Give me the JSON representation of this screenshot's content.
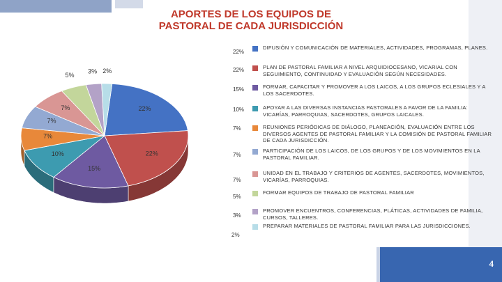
{
  "slide": {
    "title": "APORTES DE LOS EQUIPOS DE PASTORAL DE CADA JURISDICCIÓN",
    "page_number": "4"
  },
  "colors": {
    "title": "#c0392b",
    "accent": "#3866b0"
  },
  "chart_data": {
    "type": "pie",
    "title": "APORTES DE LOS EQUIPOS DE PASTORAL DE CADA JURISDICCIÓN",
    "slices": [
      {
        "label": "DIFUSIÓN Y COMUNICACIÓN DE MATERIALES, ACTIVIDADES, PROGRAMAS, PLANES.",
        "value": 22,
        "display": "22%",
        "color": "#4472c4"
      },
      {
        "label": "PLAN DE PASTORAL FAMILIAR A NIVEL ARQUIDIOCESANO, VICARIAL CON SEGUIMIENTO, CONTINUIDAD Y EVALUACIÓN SEGÚN NECESIDADES.",
        "value": 22,
        "display": "22%",
        "color": "#c0504d"
      },
      {
        "label": "FORMAR, CAPACITAR Y PROMOVER A LOS LAICOS, A LOS GRUPOS ECLESIALES Y A LOS SACERDOTES.",
        "value": 15,
        "display": "15%",
        "color": "#6e5aa1"
      },
      {
        "label": "APOYAR A LAS DIVERSAS INSTANCIAS PASTORALES A FAVOR DE LA FAMILIA: VICARÍAS, PARROQUIAS, SACERDOTES, GRUPOS LAICALES.",
        "value": 10,
        "display": "10%",
        "color": "#3d9bb0"
      },
      {
        "label": "REUNIONES PERIÓDICAS DE DIÁLOGO, PLANEACIÓN, EVALUACIÓN ENTRE LOS DIVERSOS AGENTES DE PASTORAL FAMILIAR Y LA COMISIÓN DE PASTORAL FAMILIAR DE CADA JURISDICCIÓN.",
        "value": 7,
        "display": "7%",
        "color": "#e8883a"
      },
      {
        "label": "PARTICIPACIÓN DE LOS LAICOS, DE LOS GRUPOS Y DE LOS MOVIMIENTOS EN LA PASTORAL FAMILIAR.",
        "value": 7,
        "display": "7%",
        "color": "#93a9d2"
      },
      {
        "label": "UNIDAD EN EL TRABAJO Y CRITERIOS DE AGENTES, SACERDOTES, MOVIMIENTOS, VICARÍAS, PARROQUIAS.",
        "value": 7,
        "display": "7%",
        "color": "#d99694"
      },
      {
        "label": "FORMAR EQUIPOS DE TRABAJO DE PASTORAL FAMILIAR",
        "value": 5,
        "display": "5%",
        "color": "#c3d69b"
      },
      {
        "label": "PROMOVER ENCUENTROS, CONFERENCIAS, PLÁTICAS, ACTIVIDADES DE FAMILIA, CURSOS, TALLERES.",
        "value": 3,
        "display": "3%",
        "color": "#b3a2c7"
      },
      {
        "label": "PREPARAR MATERIALES DE PASTORAL FAMILIAR PARA LAS JURISDICCIONES.",
        "value": 2,
        "display": "2%",
        "color": "#b7dde8"
      }
    ]
  }
}
